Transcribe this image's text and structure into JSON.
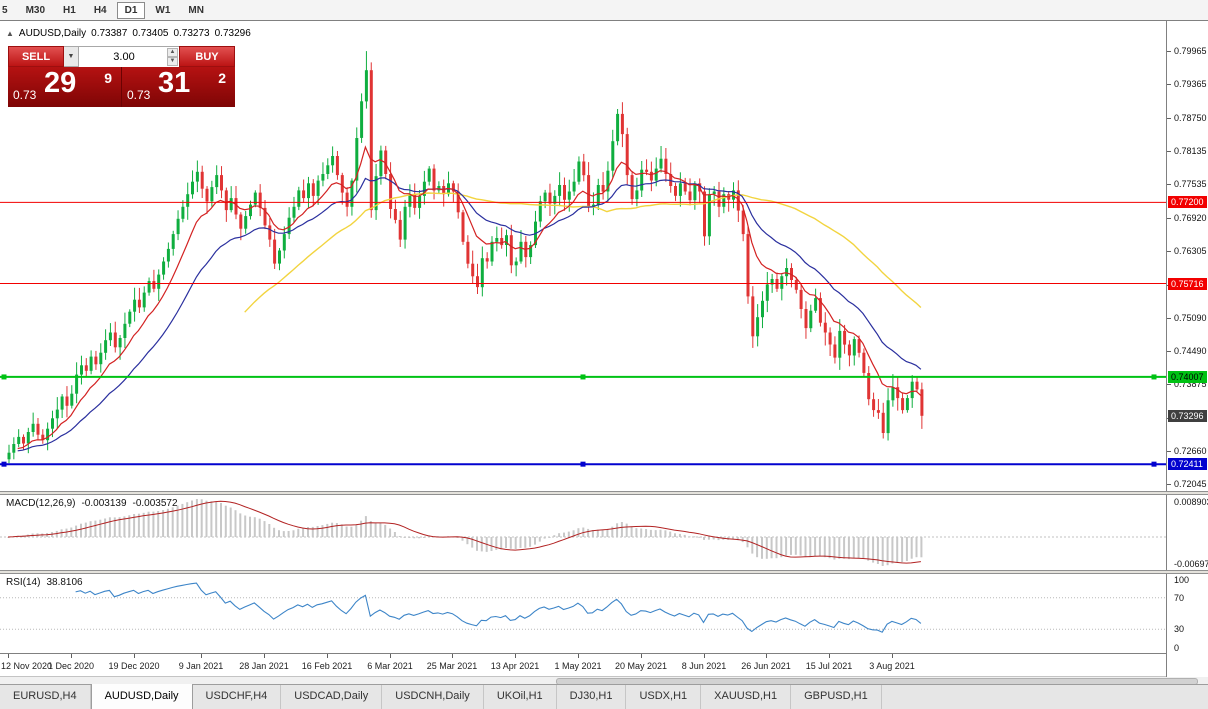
{
  "toolbar": {
    "periods": [
      {
        "label": "5",
        "active": false
      },
      {
        "label": "M30",
        "active": false
      },
      {
        "label": "H1",
        "active": false
      },
      {
        "label": "H4",
        "active": false
      },
      {
        "label": "D1",
        "active": true
      },
      {
        "label": "W1",
        "active": false
      },
      {
        "label": "MN",
        "active": false
      }
    ]
  },
  "header": {
    "symbol_label": "AUDUSD,Daily",
    "open": "0.73387",
    "high": "0.73405",
    "low": "0.73273",
    "close": "0.73296"
  },
  "trade_panel": {
    "sell_label": "SELL",
    "buy_label": "BUY",
    "volume": "3.00",
    "dropdown_icon": "▼",
    "spin_up": "▲",
    "spin_down": "▼",
    "sell_price": {
      "small": "0.73",
      "big": "29",
      "sup": "9"
    },
    "buy_price": {
      "small": "0.73",
      "big": "31",
      "sup": "2"
    }
  },
  "price_axis": {
    "ticks": [
      "0.79965",
      "0.79365",
      "0.78750",
      "0.78135",
      "0.77535",
      "0.76920",
      "0.76305",
      "0.75690",
      "0.75090",
      "0.74490",
      "0.73875",
      "0.73260",
      "0.72660",
      "0.72045"
    ]
  },
  "levels": [
    {
      "price": 0.772,
      "label": "0.77200",
      "color": "#f20000",
      "text_color": "#ffffff",
      "line_width": 1,
      "handles": false
    },
    {
      "price": 0.75716,
      "label": "0.75716",
      "color": "#f20000",
      "text_color": "#ffffff",
      "line_width": 1,
      "handles": false
    },
    {
      "price": 0.74007,
      "label": "0.74007",
      "color": "#00c214",
      "text_color": "#000000",
      "line_width": 2,
      "handles": true
    },
    {
      "price": 0.72411,
      "label": "0.72411",
      "color": "#0202cf",
      "text_color": "#ffffff",
      "line_width": 2,
      "handles": true
    }
  ],
  "current_price": {
    "value": 0.73296,
    "label": "0.73296",
    "bg": "#3f3f3f"
  },
  "macd_panel": {
    "title": "MACD(12,26,9)",
    "value_main": "-0.003139",
    "value_signal": "-0.003572",
    "axis_max": "0.008903",
    "axis_min": "-0.006977"
  },
  "rsi_panel": {
    "title": "RSI(14)",
    "value": "38.8106",
    "axis": [
      "100",
      "70",
      "30",
      "0"
    ],
    "levels": [
      70,
      30
    ]
  },
  "date_axis": {
    "labels": [
      {
        "text": "12 Nov 2020",
        "i": 0
      },
      {
        "text": "1 Dec 2020",
        "i": 13
      },
      {
        "text": "19 Dec 2020",
        "i": 26
      },
      {
        "text": "9 Jan 2021",
        "i": 40
      },
      {
        "text": "28 Jan 2021",
        "i": 53
      },
      {
        "text": "16 Feb 2021",
        "i": 66
      },
      {
        "text": "6 Mar 2021",
        "i": 79
      },
      {
        "text": "25 Mar 2021",
        "i": 92
      },
      {
        "text": "13 Apr 2021",
        "i": 105
      },
      {
        "text": "1 May 2021",
        "i": 118
      },
      {
        "text": "20 May 2021",
        "i": 131
      },
      {
        "text": "8 Jun 2021",
        "i": 144
      },
      {
        "text": "26 Jun 2021",
        "i": 157
      },
      {
        "text": "15 Jul 2021",
        "i": 170
      },
      {
        "text": "3 Aug 2021",
        "i": 183
      }
    ]
  },
  "tabs": [
    {
      "label": "EURUSD,H4",
      "active": false
    },
    {
      "label": "AUDUSD,Daily",
      "active": true
    },
    {
      "label": "USDCHF,H4",
      "active": false
    },
    {
      "label": "USDCAD,Daily",
      "active": false
    },
    {
      "label": "USDCNH,Daily",
      "active": false
    },
    {
      "label": "UKOil,H1",
      "active": false
    },
    {
      "label": "DJ30,H1",
      "active": false
    },
    {
      "label": "USDX,H1",
      "active": false
    },
    {
      "label": "XAUUSD,H1",
      "active": false
    },
    {
      "label": "GBPUSD,H1",
      "active": false
    }
  ],
  "chart_data": {
    "type": "candlestick",
    "symbol": "AUDUSD",
    "timeframe": "Daily",
    "title": "AUDUSD,Daily",
    "y_range": {
      "max": 0.8052,
      "min": 0.7192
    },
    "closes": [
      0.7262,
      0.7278,
      0.7291,
      0.7279,
      0.73,
      0.7315,
      0.7295,
      0.7285,
      0.7306,
      0.7325,
      0.7341,
      0.7365,
      0.7348,
      0.737,
      0.7405,
      0.7422,
      0.7412,
      0.7438,
      0.7424,
      0.7445,
      0.7468,
      0.7482,
      0.7455,
      0.7472,
      0.7498,
      0.752,
      0.7542,
      0.7528,
      0.7555,
      0.7576,
      0.7562,
      0.7588,
      0.7612,
      0.7635,
      0.7662,
      0.769,
      0.7712,
      0.7735,
      0.7758,
      0.7776,
      0.7745,
      0.7722,
      0.7748,
      0.777,
      0.7742,
      0.7706,
      0.7728,
      0.7698,
      0.7672,
      0.7695,
      0.7716,
      0.7738,
      0.771,
      0.7678,
      0.7652,
      0.7608,
      0.7632,
      0.7662,
      0.7692,
      0.7712,
      0.7742,
      0.7728,
      0.7755,
      0.7732,
      0.776,
      0.7772,
      0.7788,
      0.7805,
      0.777,
      0.7738,
      0.7712,
      0.776,
      0.7838,
      0.7905,
      0.7962,
      0.7706,
      0.7768,
      0.7815,
      0.7772,
      0.7708,
      0.7688,
      0.7652,
      0.7712,
      0.7735,
      0.771,
      0.7732,
      0.7758,
      0.7782,
      0.7742,
      0.775,
      0.7735,
      0.7755,
      0.774,
      0.7702,
      0.7648,
      0.7608,
      0.7585,
      0.7565,
      0.7618,
      0.7612,
      0.7648,
      0.7655,
      0.7642,
      0.766,
      0.7605,
      0.7612,
      0.7648,
      0.762,
      0.7642,
      0.7685,
      0.7722,
      0.7738,
      0.7718,
      0.7732,
      0.7752,
      0.7725,
      0.774,
      0.7758,
      0.7795,
      0.777,
      0.7712,
      0.7716,
      0.7752,
      0.774,
      0.7778,
      0.7832,
      0.7882,
      0.7845,
      0.777,
      0.7726,
      0.7742,
      0.778,
      0.7776,
      0.776,
      0.7782,
      0.78,
      0.7772,
      0.775,
      0.7732,
      0.7755,
      0.774,
      0.7724,
      0.7755,
      0.774,
      0.7658,
      0.7735,
      0.774,
      0.7712,
      0.7735,
      0.7725,
      0.7742,
      0.7705,
      0.7662,
      0.7548,
      0.7475,
      0.751,
      0.754,
      0.757,
      0.758,
      0.7562,
      0.7585,
      0.76,
      0.7578,
      0.756,
      0.7525,
      0.749,
      0.7522,
      0.7545,
      0.75,
      0.7482,
      0.746,
      0.7436,
      0.7485,
      0.746,
      0.744,
      0.747,
      0.7445,
      0.7408,
      0.736,
      0.734,
      0.7335,
      0.7298,
      0.7358,
      0.7382,
      0.7362,
      0.734,
      0.7362,
      0.7392,
      0.7378,
      0.73296
    ],
    "wick_overrides": [
      {
        "i": 0,
        "low": 0.7243
      },
      {
        "i": 74,
        "high": 0.7997
      },
      {
        "i": 75,
        "low": 0.7692
      },
      {
        "i": 126,
        "high": 0.7891
      },
      {
        "i": 181,
        "low": 0.7288
      },
      {
        "i": 187,
        "high": 0.7404
      }
    ],
    "indicators": {
      "ma_fast": 10,
      "ma_mid": 24,
      "ma_slow_sma": 50,
      "macd": [
        12,
        26,
        9
      ],
      "rsi": 14
    },
    "colors": {
      "up": "#0fae3f",
      "down": "#e03434",
      "ma_fast": "#d32222",
      "ma_mid": "#2a2f9e",
      "ma_slow": "#f2d43f",
      "macd_hist": "#c8c8c8",
      "macd_signal": "#b22222",
      "rsi": "#3d85c8"
    }
  }
}
